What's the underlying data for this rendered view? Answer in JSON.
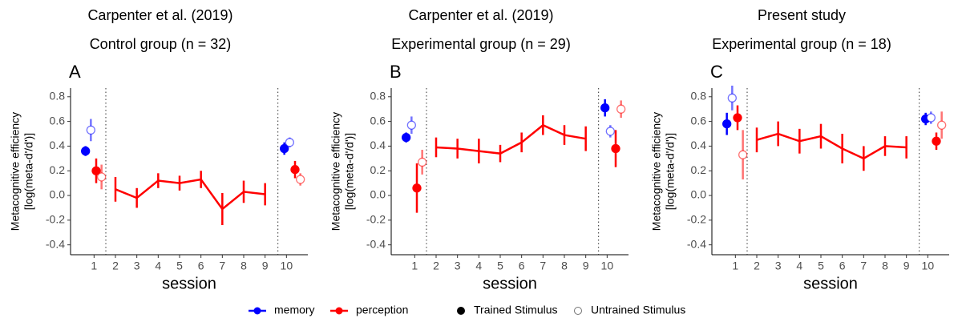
{
  "chart_data": [
    {
      "type": "line",
      "title": "Carpenter et al. (2019)",
      "subtitle": "Control group (n = 32)",
      "panel_label": "A",
      "ylabel": [
        "Metacognitive efficiency",
        "[log(meta-d'/d')]"
      ],
      "xlabel": "session",
      "xlim": [
        -0.1,
        11.0
      ],
      "xticks": [
        1,
        2,
        3,
        4,
        5,
        6,
        7,
        8,
        9,
        10
      ],
      "ylim": [
        -0.48,
        0.87
      ],
      "yticks": [
        0.8,
        0.6,
        0.4,
        0.2,
        {
          "value": 0,
          "label": "0.0"
        },
        -0.2,
        -0.4
      ],
      "vlines": [
        1.55,
        9.6
      ],
      "series": [
        {
          "color": "#0000ff",
          "filled": true,
          "x": [
            0.6,
            9.9
          ],
          "values": [
            0.36,
            0.38
          ],
          "errors": [
            0.04,
            0.05
          ]
        },
        {
          "color": "#0000ff",
          "filled": false,
          "x": [
            0.85,
            10.15
          ],
          "values": [
            0.53,
            0.43
          ],
          "errors": [
            0.09,
            0.04
          ]
        },
        {
          "color": "#ff0000",
          "filled": true,
          "x": [
            1.1,
            10.4
          ],
          "values": [
            0.2,
            0.21
          ],
          "errors": [
            0.1,
            0.07
          ]
        },
        {
          "color": "#ff0000",
          "filled": false,
          "x": [
            1.35,
            10.65
          ],
          "values": [
            0.15,
            0.13
          ],
          "errors": [
            0.1,
            0.05
          ]
        },
        {
          "color": "#ff0000",
          "filled": true,
          "connect": true,
          "x": [
            2,
            3,
            4,
            5,
            6,
            7,
            8,
            9
          ],
          "values": [
            0.05,
            -0.02,
            0.12,
            0.1,
            0.13,
            -0.11,
            0.03,
            0.01
          ],
          "errors": [
            0.1,
            0.08,
            0.06,
            0.06,
            0.07,
            0.13,
            0.09,
            0.09
          ]
        }
      ]
    },
    {
      "type": "line",
      "title": "Carpenter et al. (2019)",
      "subtitle": "Experimental group (n = 29)",
      "panel_label": "B",
      "ylabel": [
        "Metacognitive efficiency",
        "[log(meta-d'/d')]"
      ],
      "xlabel": "session",
      "xlim": [
        -0.1,
        11.0
      ],
      "xticks": [
        1,
        2,
        3,
        4,
        5,
        6,
        7,
        8,
        9,
        10
      ],
      "ylim": [
        -0.48,
        0.87
      ],
      "yticks": [
        0.8,
        0.6,
        0.4,
        0.2,
        {
          "value": 0,
          "label": "0.0"
        },
        -0.2,
        -0.4
      ],
      "vlines": [
        1.55,
        9.6
      ],
      "series": [
        {
          "color": "#0000ff",
          "filled": true,
          "x": [
            0.6,
            9.9
          ],
          "values": [
            0.47,
            0.71
          ],
          "errors": [
            0.04,
            0.07
          ]
        },
        {
          "color": "#0000ff",
          "filled": false,
          "x": [
            0.85,
            10.15
          ],
          "values": [
            0.57,
            0.52
          ],
          "errors": [
            0.07,
            0.05
          ]
        },
        {
          "color": "#ff0000",
          "filled": true,
          "x": [
            1.1,
            10.4
          ],
          "values": [
            0.06,
            0.38
          ],
          "errors": [
            0.2,
            0.15
          ]
        },
        {
          "color": "#ff0000",
          "filled": false,
          "x": [
            1.35,
            10.65
          ],
          "values": [
            0.27,
            0.7
          ],
          "errors": [
            0.1,
            0.07
          ]
        },
        {
          "color": "#ff0000",
          "filled": true,
          "connect": true,
          "x": [
            2,
            3,
            4,
            5,
            6,
            7,
            8,
            9
          ],
          "values": [
            0.39,
            0.38,
            0.36,
            0.34,
            0.43,
            0.57,
            0.49,
            0.46
          ],
          "errors": [
            0.08,
            0.08,
            0.1,
            0.07,
            0.08,
            0.08,
            0.08,
            0.1
          ]
        }
      ]
    },
    {
      "type": "line",
      "title": "Present study",
      "subtitle": "Experimental group (n = 18)",
      "panel_label": "C",
      "ylabel": [
        "Metacognitive efficiency",
        "[log(meta-d'/d')]"
      ],
      "xlabel": "session",
      "xlim": [
        -0.1,
        11.0
      ],
      "xticks": [
        1,
        2,
        3,
        4,
        5,
        6,
        7,
        8,
        9,
        10
      ],
      "ylim": [
        -0.48,
        0.87
      ],
      "yticks": [
        0.8,
        0.6,
        0.4,
        0.2,
        {
          "value": 0,
          "label": "0.0"
        },
        -0.2,
        -0.4
      ],
      "vlines": [
        1.55,
        9.6
      ],
      "series": [
        {
          "color": "#0000ff",
          "filled": true,
          "x": [
            0.6,
            9.9
          ],
          "values": [
            0.58,
            0.62
          ],
          "errors": [
            0.09,
            0.05
          ]
        },
        {
          "color": "#0000ff",
          "filled": false,
          "x": [
            0.85,
            10.15
          ],
          "values": [
            0.79,
            0.63
          ],
          "errors": [
            0.1,
            0.05
          ]
        },
        {
          "color": "#ff0000",
          "filled": true,
          "x": [
            1.1,
            10.4
          ],
          "values": [
            0.63,
            0.44
          ],
          "errors": [
            0.1,
            0.07
          ]
        },
        {
          "color": "#ff0000",
          "filled": false,
          "x": [
            1.35,
            10.65
          ],
          "values": [
            0.33,
            0.57
          ],
          "errors": [
            0.2,
            0.11
          ]
        },
        {
          "color": "#ff0000",
          "filled": true,
          "connect": true,
          "x": [
            2,
            3,
            4,
            5,
            6,
            7,
            8,
            9
          ],
          "values": [
            0.45,
            0.5,
            0.44,
            0.48,
            0.38,
            0.3,
            0.4,
            0.39
          ],
          "errors": [
            0.1,
            0.1,
            0.1,
            0.1,
            0.12,
            0.1,
            0.08,
            0.09
          ]
        }
      ]
    }
  ],
  "legend": {
    "colors": [
      {
        "name": "memory",
        "color": "#0000ff"
      },
      {
        "name": "perception",
        "color": "#ff0000"
      }
    ],
    "fills": [
      {
        "name": "Trained Stimulus",
        "filled": true
      },
      {
        "name": "Untrained Stimulus",
        "filled": false
      }
    ]
  }
}
